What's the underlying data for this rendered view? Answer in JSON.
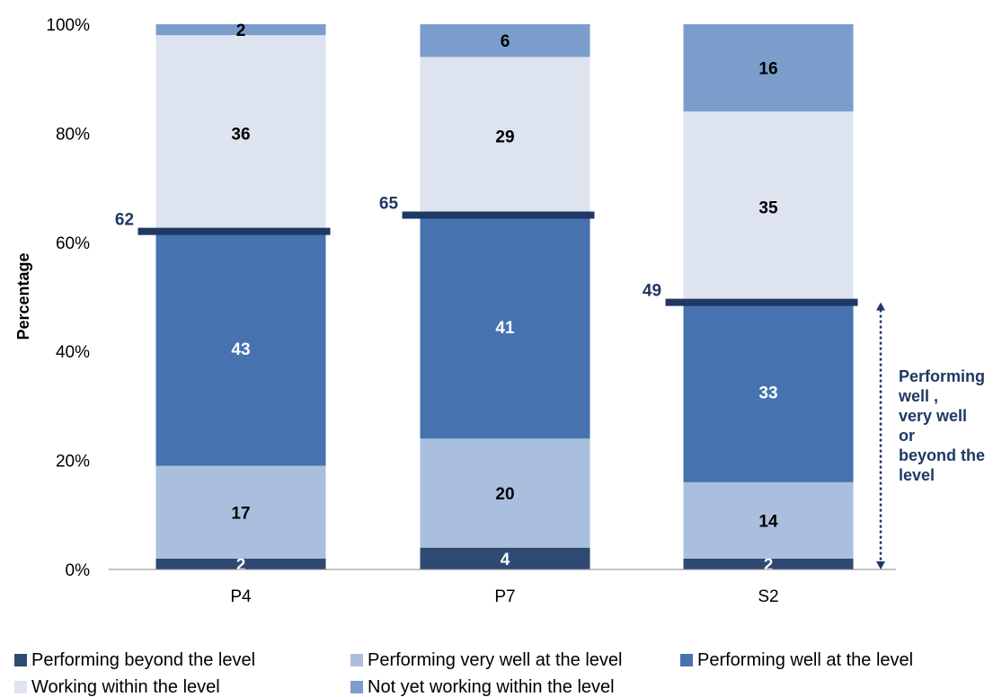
{
  "chart_data": {
    "type": "bar",
    "stacked": true,
    "categories": [
      "P4",
      "P7",
      "S2"
    ],
    "ylabel": "Percentage",
    "ylim": [
      0,
      100
    ],
    "yticks": [
      "0%",
      "20%",
      "40%",
      "60%",
      "80%",
      "100%"
    ],
    "series": [
      {
        "name": "Performing beyond the level",
        "values": [
          2,
          4,
          2
        ],
        "color": "#2e4a72",
        "label_color": "#ffffff"
      },
      {
        "name": "Performing very well at the level",
        "values": [
          17,
          20,
          14
        ],
        "color": "#a9bfdd",
        "label_color": "#000000"
      },
      {
        "name": "Performing well at the level",
        "values": [
          43,
          41,
          33
        ],
        "color": "#4672b0",
        "label_color": "#ffffff"
      },
      {
        "name": "Working within the level",
        "values": [
          36,
          29,
          35
        ],
        "color": "#dde4ef",
        "label_color": "#000000"
      },
      {
        "name": "Not yet working within the level",
        "values": [
          2,
          6,
          16
        ],
        "color": "#7a9dcb",
        "label_color": "#000000"
      }
    ],
    "markers": {
      "values": [
        62,
        65,
        49
      ],
      "labels": [
        "62",
        "65",
        "49"
      ],
      "color": "#1f3864"
    },
    "annotation": {
      "lines": [
        "Performing",
        "well ,",
        "very well",
        "or",
        "beyond the",
        "level"
      ],
      "color": "#1f3864"
    },
    "legend": {
      "position": "bottom"
    }
  }
}
